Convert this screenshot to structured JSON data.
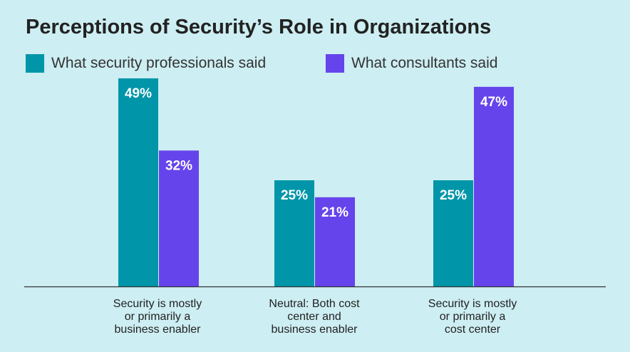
{
  "chart_data": {
    "type": "bar",
    "title": "Perceptions of Security’s Role in Organizations",
    "categories": [
      "Security is mostly or primarily a business enabler",
      "Neutral: Both cost center and business enabler",
      "Security is mostly or primarily a cost center"
    ],
    "category_lines": [
      [
        "Security is mostly",
        "or primarily a",
        "business enabler"
      ],
      [
        "Neutral: Both cost",
        "center and",
        "business enabler"
      ],
      [
        "Security is mostly",
        "or primarily a",
        "cost center"
      ]
    ],
    "series": [
      {
        "name": "What security professionals said",
        "values": [
          49,
          25,
          25
        ],
        "labels": [
          "49%",
          "25%",
          "25%"
        ],
        "color": "#0095a8"
      },
      {
        "name": "What consultants said",
        "values": [
          32,
          21,
          47
        ],
        "labels": [
          "32%",
          "21%",
          "47%"
        ],
        "color": "#6544ec"
      }
    ],
    "xlabel": "",
    "ylabel": "",
    "ylim": [
      0,
      50
    ],
    "grid": false,
    "legend_position": "top-left"
  }
}
